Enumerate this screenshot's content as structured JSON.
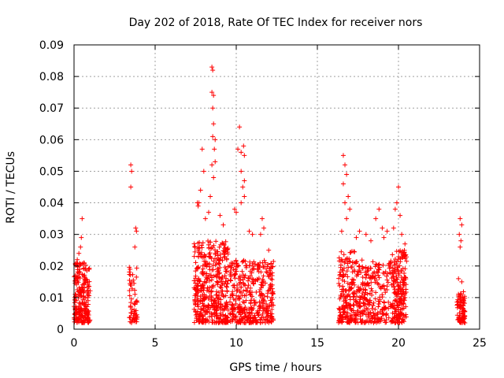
{
  "chart_data": {
    "type": "scatter",
    "title": "Day 202 of 2018, Rate Of TEC Index for receiver nors",
    "xlabel": "GPS time / hours",
    "ylabel": "ROTI / TECUs",
    "xlim": [
      0,
      25
    ],
    "ylim": [
      0,
      0.09
    ],
    "grid": true,
    "marker": "+",
    "color": "#ff0000",
    "xticks": [
      "0",
      "5",
      "10",
      "15",
      "20",
      "25"
    ],
    "yticks": [
      "0",
      "0.01",
      "0.02",
      "0.03",
      "0.04",
      "0.05",
      "0.06",
      "0.07",
      "0.08",
      "0.09"
    ],
    "clusters": [
      {
        "x_range": [
          0.0,
          1.0
        ],
        "dense_ymax": 0.021,
        "n": 230,
        "outliers": [
          [
            0.2,
            0.022
          ],
          [
            0.4,
            0.026
          ],
          [
            0.45,
            0.029
          ],
          [
            0.5,
            0.035
          ],
          [
            0.3,
            0.024
          ]
        ]
      },
      {
        "x_range": [
          3.4,
          3.9
        ],
        "dense_ymax": 0.02,
        "n": 60,
        "outliers": [
          [
            3.5,
            0.052
          ],
          [
            3.55,
            0.05
          ],
          [
            3.5,
            0.045
          ],
          [
            3.8,
            0.032
          ],
          [
            3.85,
            0.031
          ],
          [
            3.75,
            0.026
          ]
        ]
      },
      {
        "x_range": [
          7.4,
          9.5
        ],
        "dense_ymax": 0.028,
        "n": 440,
        "outliers": [
          [
            7.6,
            0.04
          ],
          [
            7.8,
            0.044
          ],
          [
            7.9,
            0.057
          ],
          [
            8.0,
            0.05
          ],
          [
            8.5,
            0.083
          ],
          [
            8.55,
            0.082
          ],
          [
            8.5,
            0.075
          ],
          [
            8.6,
            0.074
          ],
          [
            8.55,
            0.07
          ],
          [
            8.6,
            0.065
          ],
          [
            8.55,
            0.061
          ],
          [
            8.7,
            0.06
          ],
          [
            8.65,
            0.057
          ],
          [
            8.7,
            0.053
          ],
          [
            8.5,
            0.052
          ],
          [
            8.6,
            0.048
          ],
          [
            8.4,
            0.042
          ],
          [
            7.7,
            0.04
          ],
          [
            7.65,
            0.039
          ],
          [
            8.1,
            0.035
          ],
          [
            8.3,
            0.037
          ],
          [
            9.0,
            0.036
          ],
          [
            9.2,
            0.033
          ]
        ]
      },
      {
        "x_range": [
          9.6,
          12.3
        ],
        "dense_ymax": 0.022,
        "n": 400,
        "outliers": [
          [
            10.2,
            0.064
          ],
          [
            10.1,
            0.057
          ],
          [
            10.3,
            0.056
          ],
          [
            10.45,
            0.058
          ],
          [
            10.5,
            0.055
          ],
          [
            10.3,
            0.05
          ],
          [
            10.4,
            0.045
          ],
          [
            10.5,
            0.042
          ],
          [
            10.3,
            0.04
          ],
          [
            10.5,
            0.047
          ],
          [
            9.9,
            0.038
          ],
          [
            10.0,
            0.037
          ],
          [
            11.0,
            0.03
          ],
          [
            11.6,
            0.035
          ],
          [
            11.7,
            0.032
          ],
          [
            11.5,
            0.03
          ],
          [
            12.0,
            0.025
          ],
          [
            10.8,
            0.031
          ]
        ]
      },
      {
        "x_range": [
          16.3,
          17.3
        ],
        "dense_ymax": 0.025,
        "n": 180,
        "outliers": [
          [
            16.6,
            0.055
          ],
          [
            16.7,
            0.052
          ],
          [
            16.8,
            0.049
          ],
          [
            16.6,
            0.046
          ],
          [
            16.9,
            0.042
          ],
          [
            16.7,
            0.04
          ],
          [
            17.0,
            0.038
          ],
          [
            16.8,
            0.035
          ],
          [
            16.5,
            0.031
          ]
        ]
      },
      {
        "x_range": [
          17.3,
          19.6
        ],
        "dense_ymax": 0.022,
        "n": 280,
        "outliers": [
          [
            17.4,
            0.029
          ],
          [
            17.6,
            0.031
          ],
          [
            18.0,
            0.03
          ],
          [
            18.3,
            0.028
          ],
          [
            18.6,
            0.035
          ],
          [
            18.8,
            0.038
          ],
          [
            19.0,
            0.032
          ],
          [
            19.3,
            0.031
          ],
          [
            19.1,
            0.029
          ]
        ]
      },
      {
        "x_range": [
          19.6,
          20.5
        ],
        "dense_ymax": 0.025,
        "n": 200,
        "outliers": [
          [
            20.0,
            0.045
          ],
          [
            19.9,
            0.04
          ],
          [
            19.8,
            0.038
          ],
          [
            20.1,
            0.036
          ],
          [
            19.7,
            0.032
          ],
          [
            20.2,
            0.03
          ],
          [
            20.4,
            0.027
          ]
        ]
      },
      {
        "x_range": [
          23.6,
          24.1
        ],
        "dense_ymax": 0.012,
        "n": 80,
        "outliers": [
          [
            23.8,
            0.035
          ],
          [
            23.9,
            0.033
          ],
          [
            23.75,
            0.03
          ],
          [
            23.85,
            0.028
          ],
          [
            23.8,
            0.026
          ],
          [
            23.7,
            0.016
          ],
          [
            23.9,
            0.015
          ]
        ]
      }
    ]
  }
}
